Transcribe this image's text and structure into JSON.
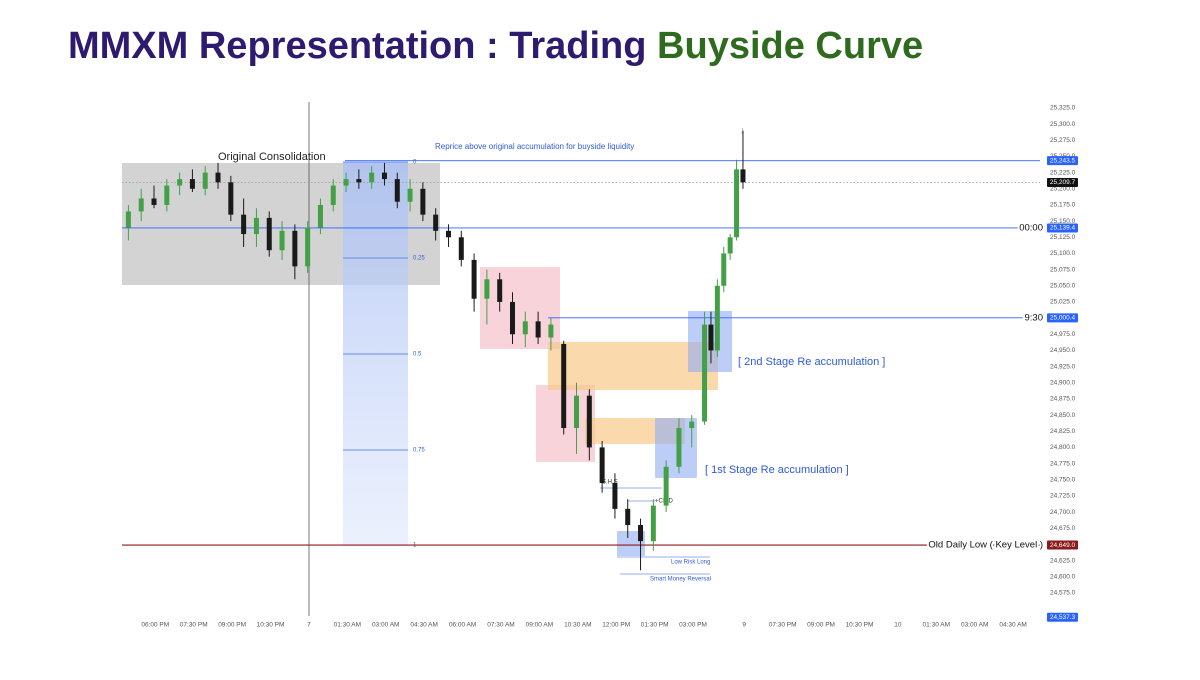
{
  "chart_data": {
    "type": "candlestick",
    "title_main": "MMXM Representation : Trading",
    "title_accent": "Buyside Curve",
    "title_color": "#2e1a6e",
    "accent_color": "#2e6b1e",
    "up_color": "#43a047",
    "down_color": "#1a1a1a",
    "grid": false,
    "xlim": [
      0,
      71.7
    ],
    "ylim": [
      24530,
      25335
    ],
    "xticks": [
      {
        "value": 2.6,
        "label": "06:00 PM"
      },
      {
        "value": 5.6,
        "label": "07:30 PM"
      },
      {
        "value": 8.6,
        "label": "09:00 PM"
      },
      {
        "value": 11.6,
        "label": "10:30 PM"
      },
      {
        "value": 14.6,
        "label": "7"
      },
      {
        "value": 17.6,
        "label": "01:30 AM"
      },
      {
        "value": 20.6,
        "label": "03:00 AM"
      },
      {
        "value": 23.6,
        "label": "04:30 AM"
      },
      {
        "value": 26.6,
        "label": "06:00 AM"
      },
      {
        "value": 29.6,
        "label": "07:30 AM"
      },
      {
        "value": 32.6,
        "label": "09:00 AM"
      },
      {
        "value": 35.6,
        "label": "10:30 AM"
      },
      {
        "value": 38.6,
        "label": "12:00 PM"
      },
      {
        "value": 41.6,
        "label": "01:30 PM"
      },
      {
        "value": 44.6,
        "label": "03:00 PM"
      },
      {
        "value": 48.6,
        "label": "9"
      },
      {
        "value": 51.6,
        "label": "07:30 PM"
      },
      {
        "value": 54.6,
        "label": "09:00 PM"
      },
      {
        "value": 57.6,
        "label": "10:30 PM"
      },
      {
        "value": 60.6,
        "label": "10"
      },
      {
        "value": 63.6,
        "label": "01:30 AM"
      },
      {
        "value": 66.6,
        "label": "03:00 AM"
      },
      {
        "value": 69.6,
        "label": "04:30 AM"
      }
    ],
    "yticks": [
      {
        "value": 24575,
        "label": "24,575.0"
      },
      {
        "value": 24600,
        "label": "24,600.0"
      },
      {
        "value": 24625,
        "label": "24,625.0"
      },
      {
        "value": 24650,
        "label": "24,650.0"
      },
      {
        "value": 24675,
        "label": "24,675.0"
      },
      {
        "value": 24700,
        "label": "24,700.0"
      },
      {
        "value": 24725,
        "label": "24,725.0"
      },
      {
        "value": 24750,
        "label": "24,750.0"
      },
      {
        "value": 24775,
        "label": "24,775.0"
      },
      {
        "value": 24800,
        "label": "24,800.0"
      },
      {
        "value": 24825,
        "label": "24,825.0"
      },
      {
        "value": 24850,
        "label": "24,850.0"
      },
      {
        "value": 24875,
        "label": "24,875.0"
      },
      {
        "value": 24900,
        "label": "24,900.0"
      },
      {
        "value": 24925,
        "label": "24,925.0"
      },
      {
        "value": 24950,
        "label": "24,950.0"
      },
      {
        "value": 24975,
        "label": "24,975.0"
      },
      {
        "value": 25000,
        "label": "25,000.0"
      },
      {
        "value": 25025,
        "label": "25,025.0"
      },
      {
        "value": 25050,
        "label": "25,050.0"
      },
      {
        "value": 25075,
        "label": "25,075.0"
      },
      {
        "value": 25100,
        "label": "25,100.0"
      },
      {
        "value": 25125,
        "label": "25,125.0"
      },
      {
        "value": 25150,
        "label": "25,150.0"
      },
      {
        "value": 25175,
        "label": "25,175.0"
      },
      {
        "value": 25200,
        "label": "25,200.0"
      },
      {
        "value": 25225,
        "label": "25,225.0"
      },
      {
        "value": 25250,
        "label": "25,250.0"
      },
      {
        "value": 25275,
        "label": "25,275.0"
      },
      {
        "value": 25300,
        "label": "25,300.0"
      },
      {
        "value": 25325,
        "label": "25,325.0"
      }
    ],
    "candles": {
      "x": [
        0.5,
        1.5,
        2.5,
        3.5,
        4.5,
        5.5,
        6.5,
        7.5,
        8.5,
        9.5,
        10.5,
        11.5,
        12.5,
        13.5,
        14.5,
        15.5,
        16.5,
        17.5,
        18.5,
        19.5,
        20.5,
        21.5,
        22.5,
        23.5,
        24.5,
        25.5,
        26.5,
        27.5,
        28.5,
        29.5,
        30.5,
        31.5,
        32.5,
        33.5,
        34.5,
        35.5,
        36.5,
        37.5,
        38.5,
        39.5,
        40.5,
        41.5,
        42.5,
        43.5,
        44.5,
        45.5,
        46,
        46.5,
        47,
        47.5,
        48,
        48.5
      ],
      "open": [
        25140,
        25165,
        25185,
        25175,
        25205,
        25215,
        25200,
        25225,
        25210,
        25160,
        25130,
        25155,
        25105,
        25135,
        25080,
        25140,
        25175,
        25205,
        25215,
        25210,
        25225,
        25215,
        25180,
        25200,
        25160,
        25135,
        25125,
        25090,
        25030,
        25060,
        25025,
        24975,
        24995,
        24970,
        24960,
        24830,
        24880,
        24800,
        24745,
        24705,
        24680,
        24655,
        24710,
        24770,
        24830,
        24840,
        24990,
        24950,
        25050,
        25100,
        25125,
        25230
      ],
      "high": [
        25175,
        25200,
        25205,
        25215,
        25225,
        25230,
        25235,
        25240,
        25220,
        25185,
        25170,
        25165,
        25150,
        25145,
        25150,
        25185,
        25215,
        25225,
        25230,
        25235,
        25240,
        25225,
        25215,
        25210,
        25170,
        25145,
        25135,
        25100,
        25075,
        25070,
        25040,
        25010,
        25010,
        25000,
        24965,
        24900,
        24890,
        24810,
        24760,
        24720,
        24690,
        24720,
        24780,
        24845,
        24850,
        25010,
        25010,
        25060,
        25110,
        25130,
        25245,
        25290
      ],
      "low": [
        25120,
        25150,
        25170,
        25165,
        25190,
        25195,
        25190,
        25200,
        25150,
        25110,
        25110,
        25095,
        25090,
        25060,
        25070,
        25130,
        25165,
        25195,
        25200,
        25200,
        25205,
        25170,
        25165,
        25150,
        25120,
        25110,
        25080,
        25010,
        24990,
        25010,
        24960,
        24955,
        24960,
        24950,
        24820,
        24790,
        24780,
        24730,
        24690,
        24660,
        24610,
        24640,
        24700,
        24760,
        24800,
        24835,
        24930,
        24940,
        25040,
        25090,
        25120,
        25200
      ],
      "close": [
        25165,
        25185,
        25175,
        25205,
        25215,
        25200,
        25225,
        25210,
        25160,
        25130,
        25155,
        25105,
        25135,
        25080,
        25140,
        25175,
        25205,
        25215,
        25210,
        25225,
        25215,
        25180,
        25200,
        25160,
        25135,
        25125,
        25090,
        25030,
        25060,
        25025,
        24975,
        24995,
        24970,
        24990,
        24830,
        24880,
        24800,
        24745,
        24705,
        24680,
        24655,
        24710,
        24770,
        24830,
        24840,
        24990,
        24950,
        25050,
        25100,
        25125,
        25230,
        25210
      ]
    },
    "levels": [
      {
        "value": 25243.5,
        "label": "25,243.5",
        "color": "#2962ff"
      },
      {
        "value": 25209.7,
        "label": "25,209.7",
        "color": "#111111"
      },
      {
        "value": 25139.4,
        "label": "25,139.4",
        "color": "#2962ff",
        "name": "00:00"
      },
      {
        "value": 25000.4,
        "label": "25,000.4",
        "color": "#2962ff",
        "name": "9:30"
      },
      {
        "value": 24649.0,
        "label": "24,649.0",
        "color": "#8b1a1a",
        "name": "Old Daily Low ( Key Level )"
      },
      {
        "value": 24537.3,
        "label": "24,537.3",
        "color": "#2962ff"
      }
    ],
    "fib_levels": [
      "0",
      "0.25",
      "0.5",
      "0.75",
      "1"
    ],
    "annotations": [
      "Original Consolidation",
      "Reprice above original accumulation for buyside liquidity",
      "[ 2nd Stage Re accumulation ]",
      "[ 1st Stage Re accumulation ]",
      "S.H.S",
      "+CISD",
      "Low Risk Long",
      "Smart Money Reversal",
      "↓",
      "↑"
    ]
  }
}
